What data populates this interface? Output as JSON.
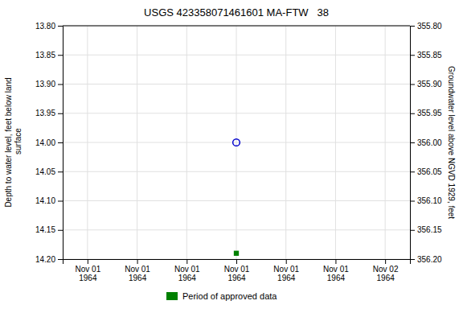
{
  "chart_data": {
    "type": "scatter",
    "title": "USGS 423358071461601 MA-FTW   38",
    "ylabel": "Depth to water level, feet below land\n surface",
    "y2label": "Groundwater level above NGVD 1929, feet",
    "categories": [
      "Nov 01\n1964",
      "Nov 01\n1964",
      "Nov 01\n1964",
      "Nov 01\n1964",
      "Nov 01\n1964",
      "Nov 01\n1964",
      "Nov 02\n1964"
    ],
    "series": [
      {
        "color": "#0000cc",
        "marker": "open-circle",
        "values": [
          null,
          null,
          null,
          14.0,
          null,
          null,
          null
        ]
      },
      {
        "name": "Period of approved data",
        "color": "#008000",
        "marker": "square",
        "values": [
          null,
          null,
          null,
          14.19,
          null,
          null,
          null
        ]
      }
    ],
    "ylim": [
      14.2,
      13.8
    ],
    "yticks": [
      {
        "value": 13.8,
        "label": "13.80"
      },
      {
        "value": 13.85,
        "label": "13.85"
      },
      {
        "value": 13.9,
        "label": "13.90"
      },
      {
        "value": 13.95,
        "label": "13.95"
      },
      {
        "value": 14.0,
        "label": "14.00"
      },
      {
        "value": 14.05,
        "label": "14.05"
      },
      {
        "value": 14.1,
        "label": "14.10"
      },
      {
        "value": 14.15,
        "label": "14.15"
      },
      {
        "value": 14.2,
        "label": "14.20"
      }
    ],
    "y2lim": [
      356.2,
      355.8
    ],
    "y2ticks": [
      {
        "value": 356.2,
        "label": "356.20"
      },
      {
        "value": 356.15,
        "label": "356.15"
      },
      {
        "value": 356.1,
        "label": "356.10"
      },
      {
        "value": 356.05,
        "label": "356.05"
      },
      {
        "value": 356.0,
        "label": "356.00"
      },
      {
        "value": 355.95,
        "label": "355.95"
      },
      {
        "value": 355.9,
        "label": "355.90"
      },
      {
        "value": 355.85,
        "label": "355.85"
      },
      {
        "value": 355.8,
        "label": "355.80"
      }
    ],
    "grid": true,
    "legend": "bottom"
  }
}
